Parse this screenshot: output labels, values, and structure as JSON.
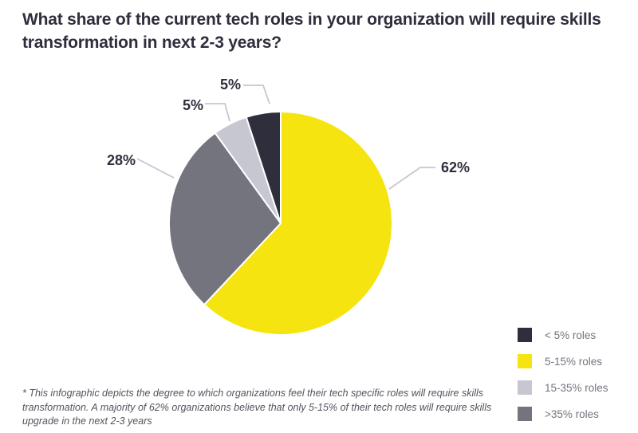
{
  "page": {
    "background": "#FFFFFF"
  },
  "chart_data": {
    "type": "pie",
    "title": "What share of the current tech roles in your organization will require skills transformation in next 2-3 years?",
    "title_lines": [
      "What share of the current tech roles in your organization will require skills",
      "transformation in next 2-3 years?"
    ],
    "slices": [
      {
        "label": "5-15% roles",
        "value": 62,
        "pct_label": "62%",
        "color": "#F6E411"
      },
      {
        "label": ">35% roles",
        "value": 28,
        "pct_label": "28%",
        "color": "#74747F"
      },
      {
        "label": "15-35% roles",
        "value": 5,
        "pct_label": "5%",
        "color": "#C7C7D1"
      },
      {
        "label": "< 5% roles",
        "value": 5,
        "pct_label": "5%",
        "color": "#2E2E3C"
      }
    ],
    "start_angle": "12-oclock",
    "direction": "clockwise",
    "legend": {
      "position": "bottom-right",
      "items": [
        {
          "label": "< 5% roles",
          "color": "#2E2E3C"
        },
        {
          "label": "5-15% roles",
          "color": "#F6E411"
        },
        {
          "label": "15-35% roles",
          "color": "#C7C7D1"
        },
        {
          "label": ">35% roles",
          "color": "#74747F"
        }
      ]
    },
    "footnote": "* This infographic depicts the degree to which organizations feel their tech specific roles will require skills transformation. A majority of 62% organizations believe that only 5-15% of their tech roles will require skills upgrade in the next 2-3 years",
    "footnote_lines": [
      "* This infographic depicts the degree to which organizations feel their tech specific roles will require skills",
      "transformation. A majority of 62% organizations believe that only 5-15% of their tech roles will require skills",
      "upgrade in the next 2-3 years"
    ],
    "colors": {
      "accent_yellow": "#F6E411",
      "dark_navy": "#2E2E3C",
      "mid_gray": "#74747F",
      "light_gray": "#C7C7D1",
      "callout_line": "#C6C6D4",
      "title_text": "#2E2E3D",
      "legend_text": "#747480",
      "footnote_text": "#53535F"
    }
  }
}
